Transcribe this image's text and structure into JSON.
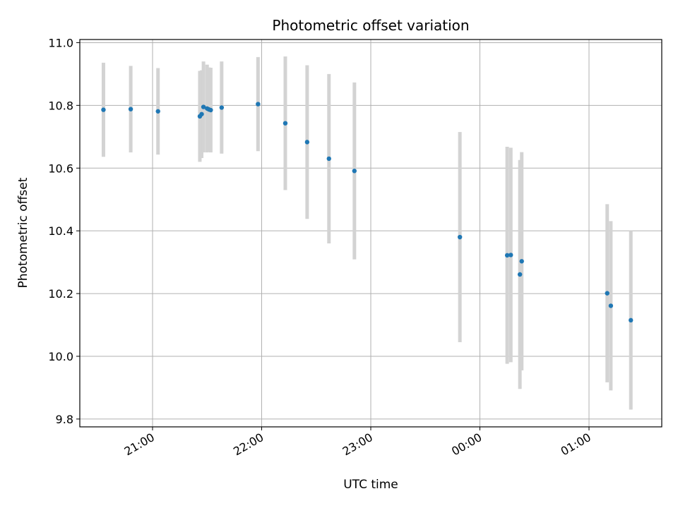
{
  "chart_data": {
    "type": "scatter",
    "title": "Photometric offset variation",
    "xlabel": "UTC time",
    "ylabel": "Photometric offset",
    "grid": true,
    "xlim": [
      "20:20",
      "01:40"
    ],
    "ylim": [
      9.775,
      11.01
    ],
    "x_ticks": [
      {
        "t": "21:00",
        "label": "21:00"
      },
      {
        "t": "22:00",
        "label": "22:00"
      },
      {
        "t": "23:00",
        "label": "23:00"
      },
      {
        "t": "00:00",
        "label": "00:00"
      },
      {
        "t": "01:00",
        "label": "01:00"
      }
    ],
    "y_ticks": [
      {
        "v": 9.8,
        "label": "9.8"
      },
      {
        "v": 10.0,
        "label": "10.0"
      },
      {
        "v": 10.2,
        "label": "10.2"
      },
      {
        "v": 10.4,
        "label": "10.4"
      },
      {
        "v": 10.6,
        "label": "10.6"
      },
      {
        "v": 10.8,
        "label": "10.8"
      },
      {
        "v": 11.0,
        "label": "11.0"
      }
    ],
    "point_color": "#1f77b4",
    "errorbar_color": "#d3d3d3",
    "points": [
      {
        "t": "20:33",
        "y": 10.786,
        "err": 0.15
      },
      {
        "t": "20:48",
        "y": 10.788,
        "err": 0.138
      },
      {
        "t": "21:03",
        "y": 10.781,
        "err": 0.138
      },
      {
        "t": "21:26",
        "y": 10.765,
        "err": 0.145
      },
      {
        "t": "21:27",
        "y": 10.772,
        "err": 0.14
      },
      {
        "t": "21:28",
        "y": 10.795,
        "err": 0.145
      },
      {
        "t": "21:30",
        "y": 10.79,
        "err": 0.14
      },
      {
        "t": "21:31",
        "y": 10.787,
        "err": 0.134
      },
      {
        "t": "21:32",
        "y": 10.785,
        "err": 0.135
      },
      {
        "t": "21:38",
        "y": 10.793,
        "err": 0.147
      },
      {
        "t": "21:58",
        "y": 10.804,
        "err": 0.15
      },
      {
        "t": "22:13",
        "y": 10.743,
        "err": 0.213
      },
      {
        "t": "22:25",
        "y": 10.683,
        "err": 0.245
      },
      {
        "t": "22:37",
        "y": 10.63,
        "err": 0.27
      },
      {
        "t": "22:51",
        "y": 10.591,
        "err": 0.282
      },
      {
        "t": "23:49",
        "y": 10.38,
        "err": 0.335
      },
      {
        "t": "00:15",
        "y": 10.322,
        "err": 0.346
      },
      {
        "t": "00:17",
        "y": 10.323,
        "err": 0.342
      },
      {
        "t": "00:22",
        "y": 10.261,
        "err": 0.365
      },
      {
        "t": "00:23",
        "y": 10.303,
        "err": 0.348
      },
      {
        "t": "01:10",
        "y": 10.201,
        "err": 0.284
      },
      {
        "t": "01:12",
        "y": 10.161,
        "err": 0.27
      },
      {
        "t": "01:23",
        "y": 10.115,
        "err": 0.285
      }
    ]
  }
}
